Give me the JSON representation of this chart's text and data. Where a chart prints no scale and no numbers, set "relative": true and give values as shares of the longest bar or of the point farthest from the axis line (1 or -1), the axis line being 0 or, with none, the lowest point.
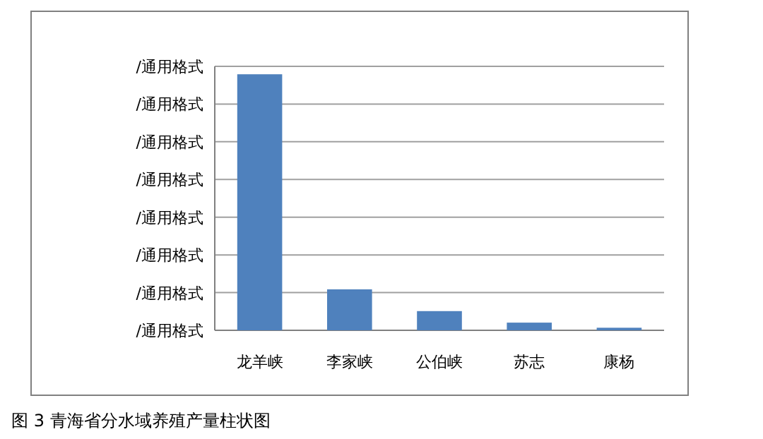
{
  "chart_data": {
    "type": "bar",
    "relative": true,
    "categories": [
      "龙羊峡",
      "李家峡",
      "公伯峡",
      "苏志",
      "康杨"
    ],
    "values": [
      1,
      0.16,
      0.075,
      0.03,
      0.01
    ],
    "color": "#4f81bd",
    "grid": "y",
    "annotations": [
      "/通用格式",
      "/通用格式",
      "/通用格式",
      "/通用格式",
      "/通用格式",
      "/通用格式",
      "/通用格式",
      "/通用格式",
      "图 3 青海省分水域养殖产量柱状图"
    ]
  }
}
